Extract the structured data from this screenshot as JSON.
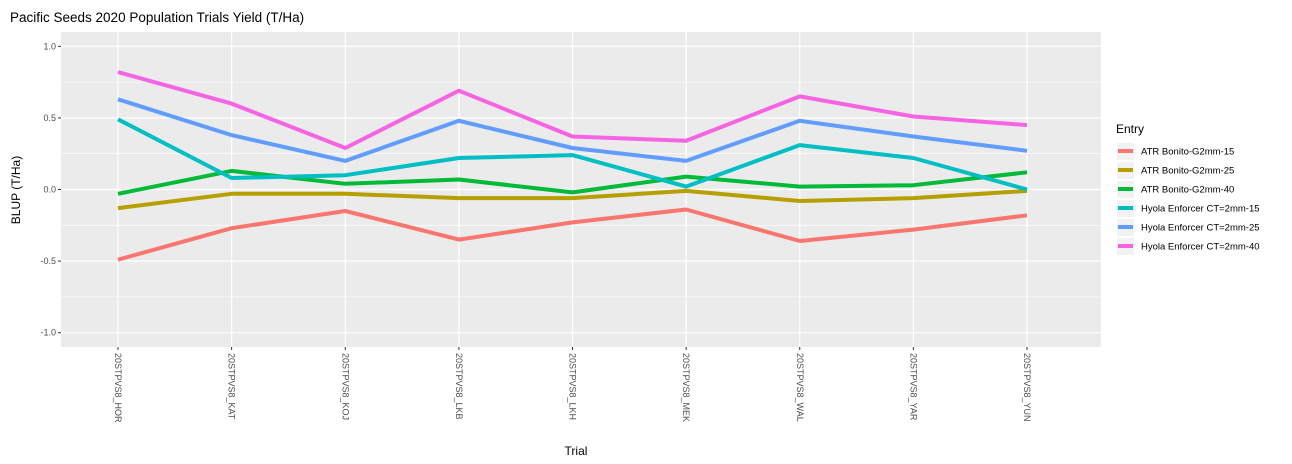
{
  "chart_data": {
    "type": "line",
    "title": "Pacific Seeds 2020 Population Trials Yield (T/Ha)",
    "xlabel": "Trial",
    "ylabel": "BLUP (T/Ha)",
    "ylim": [
      -1.1,
      1.1
    ],
    "yticks": [
      -1.0,
      -0.5,
      0.0,
      0.5,
      1.0
    ],
    "ytick_labels": [
      "-1.0",
      "-0.5",
      "0.0",
      "0.5",
      "1.0"
    ],
    "grid": true,
    "legend": {
      "title": "Entry",
      "position": "right"
    },
    "categories": [
      "20STPVS8_HOR",
      "20STPVS8_KAT",
      "20STPVS8_KOJ",
      "20STPVS8_LKB",
      "20STPVS8_LKH",
      "20STPVS8_MEK",
      "20STPVS8_WAL",
      "20STPVS8_YAR",
      "20STPVS8_YUN"
    ],
    "series": [
      {
        "name": "ATR Bonito-G2mm-15",
        "color": "#F8766D",
        "values": [
          -0.49,
          -0.27,
          -0.15,
          -0.35,
          -0.23,
          -0.14,
          -0.36,
          -0.28,
          -0.18
        ]
      },
      {
        "name": "ATR Bonito-G2mm-25",
        "color": "#B79F00",
        "values": [
          -0.13,
          -0.03,
          -0.03,
          -0.06,
          -0.06,
          -0.01,
          -0.08,
          -0.06,
          -0.01
        ]
      },
      {
        "name": "ATR Bonito-G2mm-40",
        "color": "#00BA38",
        "values": [
          -0.03,
          0.13,
          0.04,
          0.07,
          -0.02,
          0.09,
          0.02,
          0.03,
          0.12
        ]
      },
      {
        "name": "Hyola Enforcer CT=2mm-15",
        "color": "#00BFC4",
        "values": [
          0.49,
          0.08,
          0.1,
          0.22,
          0.24,
          0.02,
          0.31,
          0.22,
          0.0
        ]
      },
      {
        "name": "Hyola Enforcer CT=2mm-25",
        "color": "#619CFF",
        "values": [
          0.63,
          0.38,
          0.2,
          0.48,
          0.29,
          0.2,
          0.48,
          0.37,
          0.27
        ]
      },
      {
        "name": "Hyola Enforcer CT=2mm-40",
        "color": "#F564E3",
        "values": [
          0.82,
          0.6,
          0.29,
          0.69,
          0.37,
          0.34,
          0.65,
          0.51,
          0.45
        ]
      }
    ]
  }
}
